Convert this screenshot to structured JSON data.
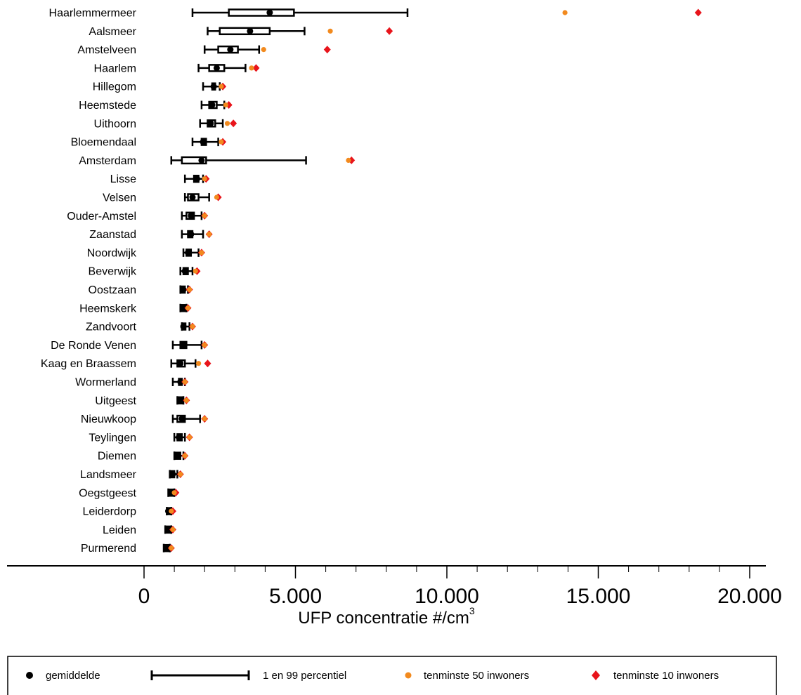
{
  "chart_data": {
    "type": "box",
    "x_axis": {
      "label": "UFP concentratie #/cm",
      "label_superscript": "3",
      "range": [
        0,
        20000
      ],
      "ticks": [
        0,
        5000,
        10000,
        15000,
        20000
      ],
      "tick_labels": [
        "0",
        "5.000",
        "10.000",
        "15.000",
        "20.000"
      ]
    },
    "legend": {
      "placement": "bottom",
      "entries": [
        {
          "key": "mean",
          "label": "gemiddelde",
          "symbol": "circle",
          "color": "#000000"
        },
        {
          "key": "range",
          "label": "1 en 99 percentiel",
          "symbol": "errorbar",
          "color": "#000000"
        },
        {
          "key": "p50",
          "label": "tenminste 50 inwoners",
          "symbol": "circle",
          "color": "#f28a1e"
        },
        {
          "key": "p10",
          "label": "tenminste 10 inwoners",
          "symbol": "diamond",
          "color": "#e8141b"
        }
      ]
    },
    "categories": [
      {
        "name": "Haarlemmermeer",
        "p1": 1600,
        "q1": 2800,
        "mean": 4150,
        "q3": 4950,
        "p99": 8700,
        "min50": 13900,
        "min10": 18300
      },
      {
        "name": "Aalsmeer",
        "p1": 2100,
        "q1": 2500,
        "mean": 3500,
        "q3": 4150,
        "p99": 5300,
        "min50": 6150,
        "min10": 8100
      },
      {
        "name": "Amstelveen",
        "p1": 2000,
        "q1": 2450,
        "mean": 2850,
        "q3": 3100,
        "p99": 3800,
        "min50": 3950,
        "min10": 6050
      },
      {
        "name": "Haarlem",
        "p1": 1800,
        "q1": 2150,
        "mean": 2400,
        "q3": 2650,
        "p99": 3350,
        "min50": 3550,
        "min10": 3700
      },
      {
        "name": "Hillegom",
        "p1": 1950,
        "q1": 2250,
        "mean": 2300,
        "q3": 2350,
        "p99": 2500,
        "min50": 2550,
        "min10": 2600
      },
      {
        "name": "Heemstede",
        "p1": 1900,
        "q1": 2150,
        "mean": 2250,
        "q3": 2400,
        "p99": 2650,
        "min50": 2700,
        "min10": 2800
      },
      {
        "name": "Uithoorn",
        "p1": 1850,
        "q1": 2100,
        "mean": 2200,
        "q3": 2350,
        "p99": 2600,
        "min50": 2750,
        "min10": 2950
      },
      {
        "name": "Bloemendaal",
        "p1": 1600,
        "q1": 1900,
        "mean": 1950,
        "q3": 2050,
        "p99": 2450,
        "min50": 2550,
        "min10": 2600
      },
      {
        "name": "Amsterdam",
        "p1": 900,
        "q1": 1250,
        "mean": 1900,
        "q3": 2050,
        "p99": 5350,
        "min50": 6750,
        "min10": 6850
      },
      {
        "name": "Lisse",
        "p1": 1350,
        "q1": 1650,
        "mean": 1750,
        "q3": 1800,
        "p99": 1950,
        "min50": 2000,
        "min10": 2050
      },
      {
        "name": "Velsen",
        "p1": 1350,
        "q1": 1450,
        "mean": 1600,
        "q3": 1800,
        "p99": 2150,
        "min50": 2400,
        "min10": 2450
      },
      {
        "name": "Ouder-Amstel",
        "p1": 1250,
        "q1": 1400,
        "mean": 1550,
        "q3": 1650,
        "p99": 1900,
        "min50": 2000,
        "min10": 2000
      },
      {
        "name": "Zaanstad",
        "p1": 1250,
        "q1": 1450,
        "mean": 1550,
        "q3": 1600,
        "p99": 1950,
        "min50": 2150,
        "min10": 2150
      },
      {
        "name": "Noordwijk",
        "p1": 1300,
        "q1": 1400,
        "mean": 1450,
        "q3": 1550,
        "p99": 1800,
        "min50": 1900,
        "min10": 1900
      },
      {
        "name": "Beverwijk",
        "p1": 1200,
        "q1": 1300,
        "mean": 1350,
        "q3": 1450,
        "p99": 1600,
        "min50": 1700,
        "min10": 1750
      },
      {
        "name": "Oostzaan",
        "p1": 1200,
        "q1": 1250,
        "mean": 1300,
        "q3": 1350,
        "p99": 1450,
        "min50": 1500,
        "min10": 1500
      },
      {
        "name": "Heemskerk",
        "p1": 1200,
        "q1": 1250,
        "mean": 1300,
        "q3": 1350,
        "p99": 1400,
        "min50": 1450,
        "min10": 1450
      },
      {
        "name": "Zandvoort",
        "p1": 1250,
        "q1": 1300,
        "mean": 1300,
        "q3": 1350,
        "p99": 1500,
        "min50": 1600,
        "min10": 1600
      },
      {
        "name": "De Ronde Venen",
        "p1": 950,
        "q1": 1200,
        "mean": 1300,
        "q3": 1400,
        "p99": 1900,
        "min50": 2000,
        "min10": 2000
      },
      {
        "name": "Kaag en Braassem",
        "p1": 900,
        "q1": 1100,
        "mean": 1200,
        "q3": 1350,
        "p99": 1700,
        "min50": 1800,
        "min10": 2100
      },
      {
        "name": "Wormerland",
        "p1": 950,
        "q1": 1150,
        "mean": 1200,
        "q3": 1250,
        "p99": 1350,
        "min50": 1350,
        "min10": 1350
      },
      {
        "name": "Uitgeest",
        "p1": 1100,
        "q1": 1150,
        "mean": 1200,
        "q3": 1250,
        "p99": 1300,
        "min50": 1400,
        "min10": 1400
      },
      {
        "name": "Nieuwkoop",
        "p1": 950,
        "q1": 1100,
        "mean": 1250,
        "q3": 1350,
        "p99": 1850,
        "min50": 2000,
        "min10": 2000
      },
      {
        "name": "Teylingen",
        "p1": 1000,
        "q1": 1100,
        "mean": 1150,
        "q3": 1250,
        "p99": 1350,
        "min50": 1500,
        "min10": 1500
      },
      {
        "name": "Diemen",
        "p1": 1000,
        "q1": 1050,
        "mean": 1100,
        "q3": 1200,
        "p99": 1300,
        "min50": 1350,
        "min10": 1350
      },
      {
        "name": "Landsmeer",
        "p1": 850,
        "q1": 900,
        "mean": 950,
        "q3": 1000,
        "p99": 1100,
        "min50": 1200,
        "min10": 1200
      },
      {
        "name": "Oegstgeest",
        "p1": 800,
        "q1": 850,
        "mean": 900,
        "q3": 950,
        "p99": 1000,
        "min50": 1000,
        "min10": 1050
      },
      {
        "name": "Leiderdorp",
        "p1": 750,
        "q1": 800,
        "mean": 800,
        "q3": 850,
        "p99": 900,
        "min50": 900,
        "min10": 950
      },
      {
        "name": "Leiden",
        "p1": 700,
        "q1": 750,
        "mean": 800,
        "q3": 850,
        "p99": 900,
        "min50": 950,
        "min10": 950
      },
      {
        "name": "Purmerend",
        "p1": 650,
        "q1": 700,
        "mean": 750,
        "q3": 800,
        "p99": 850,
        "min50": 900,
        "min10": 900
      }
    ]
  }
}
